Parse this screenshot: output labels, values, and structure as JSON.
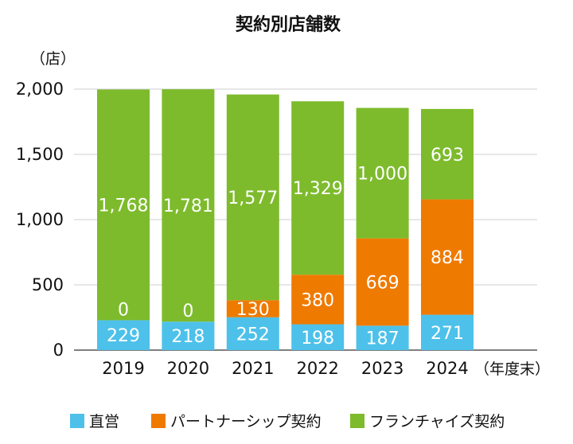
{
  "chart_data": {
    "type": "bar",
    "stacked": true,
    "title": "契約別店舗数",
    "ylabel": "（店）",
    "x_suffix": "（年度末）",
    "categories": [
      "2019",
      "2020",
      "2021",
      "2022",
      "2023",
      "2024"
    ],
    "series": [
      {
        "name": "直営",
        "color": "#4dc1ea",
        "values": [
          229,
          218,
          252,
          198,
          187,
          271
        ],
        "labels": [
          "229",
          "218",
          "252",
          "198",
          "187",
          "271"
        ]
      },
      {
        "name": "パートナーシップ契約",
        "color": "#ef7a00",
        "values": [
          0,
          0,
          130,
          380,
          669,
          884
        ],
        "labels": [
          "0",
          "0",
          "130",
          "380",
          "669",
          "884"
        ]
      },
      {
        "name": "フランチャイズ契約",
        "color": "#7dbb2c",
        "values": [
          1768,
          1781,
          1577,
          1329,
          1000,
          693
        ],
        "labels": [
          "1,768",
          "1,781",
          "1,577",
          "1,329",
          "1,000",
          "693"
        ]
      }
    ],
    "ylim": [
      0,
      2000
    ],
    "yticks": [
      0,
      500,
      1000,
      1500,
      2000
    ],
    "ytick_labels": [
      "0",
      "500",
      "1,000",
      "1,500",
      "2,000"
    ],
    "grid": true,
    "legend_position": "bottom"
  }
}
